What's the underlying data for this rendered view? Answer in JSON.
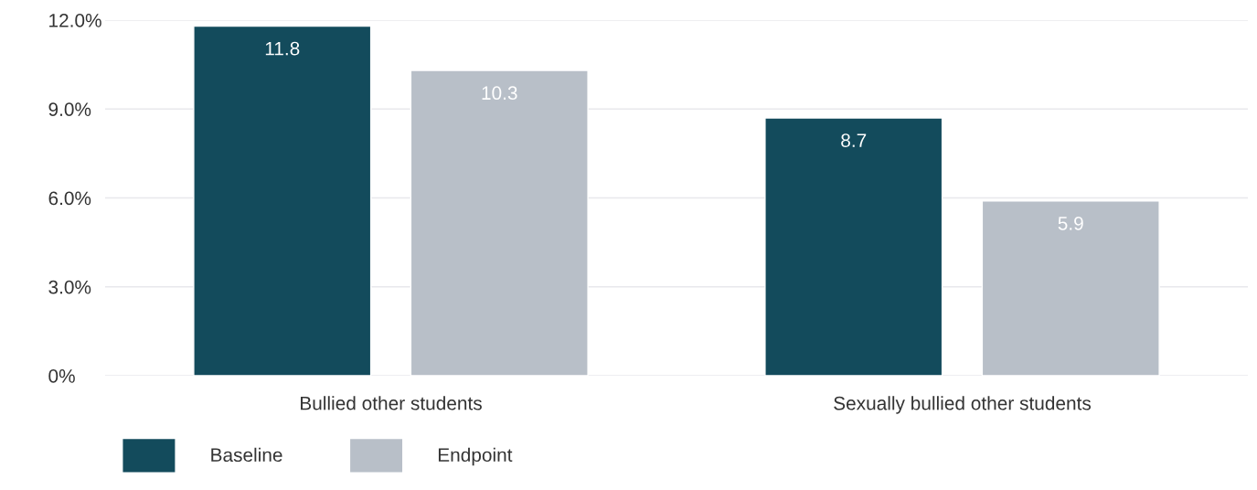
{
  "chart_data": {
    "type": "bar",
    "categories": [
      "Bullied other students",
      "Sexually bullied other students"
    ],
    "series": [
      {
        "name": "Baseline",
        "color": "#134b5c",
        "values": [
          11.8,
          8.7
        ]
      },
      {
        "name": "Endpoint",
        "color": "#b8bfc8",
        "values": [
          10.3,
          5.9
        ]
      }
    ],
    "ylim": [
      0,
      12
    ],
    "yticks": [
      {
        "value": 0,
        "label": "0%"
      },
      {
        "value": 3,
        "label": "3.0%"
      },
      {
        "value": 6,
        "label": "6.0%"
      },
      {
        "value": 9,
        "label": "9.0%"
      },
      {
        "value": 12,
        "label": "12.0%"
      }
    ],
    "grid": "y",
    "data_labels": true,
    "legend": "bottom left"
  }
}
